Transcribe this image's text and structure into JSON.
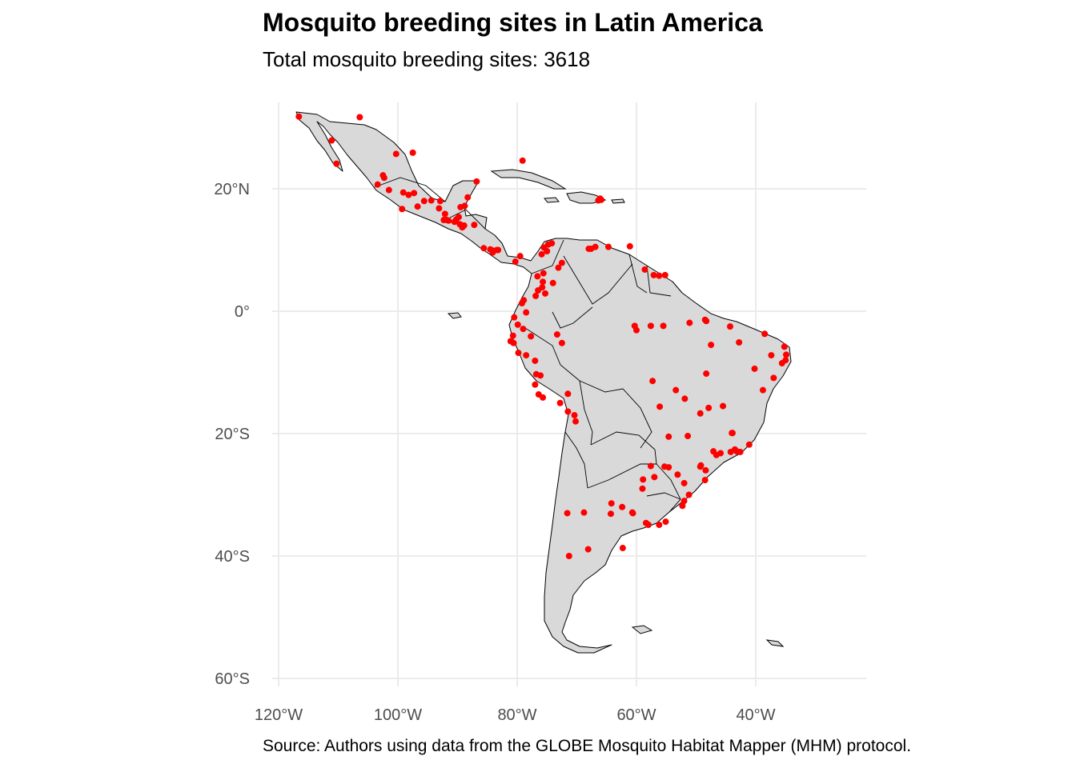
{
  "title": "Mosquito breeding sites in Latin America",
  "subtitle": "Total mosquito breeding sites: 3618",
  "caption": "Source: Authors using data from the GLOBE Mosquito Habitat Mapper (MHM) protocol.",
  "colors": {
    "land": "#d9d9d9",
    "border": "#000000",
    "point": "#ff0000",
    "grid": "#ebebeb"
  },
  "chart_data": {
    "type": "scatter",
    "projection": "lon/lat",
    "xlim": [
      -120,
      -20
    ],
    "ylim": [
      -60,
      33
    ],
    "grid": true,
    "x_ticks": [
      {
        "value": -120,
        "label": "120°W"
      },
      {
        "value": -100,
        "label": "100°W"
      },
      {
        "value": -80,
        "label": "80°W"
      },
      {
        "value": -60,
        "label": "60°W"
      },
      {
        "value": -40,
        "label": "40°W"
      }
    ],
    "y_ticks": [
      {
        "value": 20,
        "label": "20°N"
      },
      {
        "value": 0,
        "label": "0°"
      },
      {
        "value": -20,
        "label": "20°S"
      },
      {
        "value": -40,
        "label": "40°S"
      },
      {
        "value": -60,
        "label": "60°S"
      }
    ],
    "points": [
      [
        -116.6,
        31.8
      ],
      [
        -106.4,
        31.7
      ],
      [
        -111.1,
        27.9
      ],
      [
        -110.3,
        24.1
      ],
      [
        -100.3,
        25.7
      ],
      [
        -97.5,
        25.9
      ],
      [
        -103.4,
        20.7
      ],
      [
        -102.5,
        22.2
      ],
      [
        -101.5,
        19.8
      ],
      [
        -99.1,
        19.4
      ],
      [
        -98.2,
        19.0
      ],
      [
        -97.3,
        19.3
      ],
      [
        -96.7,
        17.1
      ],
      [
        -95.6,
        18.0
      ],
      [
        -94.4,
        18.1
      ],
      [
        -93.1,
        16.8
      ],
      [
        -92.9,
        18.0
      ],
      [
        -92.1,
        15.9
      ],
      [
        -91.5,
        14.8
      ],
      [
        -90.5,
        14.6
      ],
      [
        -89.6,
        14.2
      ],
      [
        -89.2,
        13.7
      ],
      [
        -88.9,
        14.0
      ],
      [
        -89.5,
        17.0
      ],
      [
        -88.8,
        17.2
      ],
      [
        -88.3,
        18.6
      ],
      [
        -86.8,
        21.2
      ],
      [
        -87.2,
        14.1
      ],
      [
        -89.8,
        15.4
      ],
      [
        -90.2,
        15.0
      ],
      [
        -84.1,
        9.9
      ],
      [
        -84.5,
        10.1
      ],
      [
        -83.2,
        10.0
      ],
      [
        -85.6,
        10.3
      ],
      [
        -79.5,
        9.0
      ],
      [
        -80.3,
        8.1
      ],
      [
        -79.1,
        24.6
      ],
      [
        -66.1,
        18.4
      ],
      [
        -65.9,
        18.2
      ],
      [
        -66.4,
        18.1
      ],
      [
        -61.1,
        10.6
      ],
      [
        -64.7,
        10.5
      ],
      [
        -75.5,
        10.4
      ],
      [
        -74.8,
        10.9
      ],
      [
        -75.9,
        9.3
      ],
      [
        -74.2,
        11.1
      ],
      [
        -75.0,
        9.8
      ],
      [
        -76.6,
        5.7
      ],
      [
        -75.6,
        6.2
      ],
      [
        -74.0,
        4.6
      ],
      [
        -75.7,
        4.8
      ],
      [
        -76.5,
        3.4
      ],
      [
        -75.3,
        2.9
      ],
      [
        -73.1,
        7.1
      ],
      [
        -72.5,
        7.9
      ],
      [
        -76.9,
        2.5
      ],
      [
        -75.8,
        3.9
      ],
      [
        -78.9,
        1.8
      ],
      [
        -79.2,
        1.3
      ],
      [
        -78.5,
        -0.2
      ],
      [
        -79.9,
        -2.2
      ],
      [
        -80.5,
        -1.0
      ],
      [
        -79.0,
        -2.9
      ],
      [
        -80.7,
        -4.0
      ],
      [
        -81.1,
        -4.9
      ],
      [
        -80.6,
        -5.2
      ],
      [
        -79.8,
        -6.8
      ],
      [
        -78.5,
        -7.2
      ],
      [
        -77.0,
        -8.1
      ],
      [
        -76.8,
        -10.3
      ],
      [
        -77.0,
        -12.0
      ],
      [
        -76.4,
        -13.6
      ],
      [
        -75.7,
        -14.1
      ],
      [
        -76.1,
        -10.5
      ],
      [
        -73.3,
        -3.8
      ],
      [
        -77.7,
        -4.1
      ],
      [
        -71.5,
        -13.5
      ],
      [
        -71.5,
        -16.4
      ],
      [
        -70.2,
        -18.0
      ],
      [
        -72.5,
        -5.2
      ],
      [
        -60.0,
        -3.1
      ],
      [
        -60.3,
        -2.4
      ],
      [
        -55.5,
        -2.4
      ],
      [
        -57.6,
        -2.4
      ],
      [
        -51.1,
        -1.9
      ],
      [
        -48.5,
        -1.4
      ],
      [
        -48.3,
        -1.6
      ],
      [
        -44.3,
        -2.5
      ],
      [
        -38.5,
        -3.7
      ],
      [
        -35.2,
        -5.8
      ],
      [
        -34.9,
        -7.1
      ],
      [
        -35.0,
        -8.0
      ],
      [
        -35.6,
        -8.5
      ],
      [
        -37.0,
        -10.9
      ],
      [
        -37.4,
        -7.2
      ],
      [
        -38.8,
        -12.9
      ],
      [
        -40.2,
        -9.4
      ],
      [
        -42.8,
        -5.1
      ],
      [
        -43.9,
        -19.9
      ],
      [
        -43.2,
        -22.9
      ],
      [
        -43.5,
        -22.6
      ],
      [
        -44.2,
        -23.0
      ],
      [
        -46.6,
        -23.5
      ],
      [
        -47.1,
        -22.9
      ],
      [
        -49.3,
        -25.4
      ],
      [
        -48.5,
        -27.6
      ],
      [
        -51.2,
        -30.0
      ],
      [
        -52.3,
        -31.8
      ],
      [
        -52.0,
        -28.1
      ],
      [
        -54.6,
        -25.5
      ],
      [
        -55.3,
        -25.4
      ],
      [
        -57.6,
        -25.3
      ],
      [
        -57.0,
        -27.1
      ],
      [
        -58.9,
        -27.5
      ],
      [
        -59.0,
        -29.0
      ],
      [
        -55.1,
        -34.4
      ],
      [
        -56.2,
        -34.9
      ],
      [
        -58.4,
        -34.6
      ],
      [
        -58.0,
        -34.9
      ],
      [
        -60.6,
        -33.0
      ],
      [
        -60.7,
        -32.9
      ],
      [
        -64.2,
        -31.4
      ],
      [
        -64.3,
        -33.1
      ],
      [
        -62.3,
        -38.7
      ],
      [
        -62.4,
        -32.0
      ],
      [
        -68.8,
        -32.9
      ],
      [
        -68.1,
        -38.9
      ],
      [
        -71.3,
        -40.0
      ],
      [
        -71.6,
        -33.0
      ],
      [
        -47.9,
        -15.8
      ],
      [
        -49.3,
        -16.7
      ],
      [
        -51.9,
        -14.3
      ],
      [
        -54.6,
        -20.5
      ],
      [
        -56.1,
        -15.6
      ],
      [
        -53.4,
        -12.9
      ],
      [
        -57.3,
        -11.4
      ],
      [
        -47.5,
        -5.5
      ],
      [
        -45.5,
        -15.5
      ],
      [
        -48.3,
        -10.2
      ],
      [
        -49.2,
        -25.2
      ],
      [
        -51.4,
        -20.4
      ],
      [
        -44.0,
        -19.9
      ],
      [
        -41.1,
        -21.8
      ],
      [
        -42.6,
        -23.0
      ],
      [
        -45.9,
        -23.2
      ],
      [
        -48.4,
        -26.0
      ],
      [
        -53.1,
        -26.7
      ],
      [
        -52.0,
        -31.0
      ],
      [
        -58.6,
        6.8
      ],
      [
        -56.2,
        5.8
      ],
      [
        -57.1,
        5.9
      ],
      [
        -55.2,
        5.9
      ],
      [
        -66.9,
        10.5
      ],
      [
        -67.6,
        10.2
      ],
      [
        -68.0,
        10.2
      ],
      [
        -70.4,
        -17.0
      ],
      [
        -72.8,
        -15.0
      ],
      [
        -83.4,
        10.0
      ],
      [
        -84.1,
        9.6
      ],
      [
        -91.8,
        14.9
      ],
      [
        -92.3,
        14.9
      ],
      [
        -102.3,
        21.8
      ],
      [
        -99.3,
        16.7
      ]
    ]
  }
}
